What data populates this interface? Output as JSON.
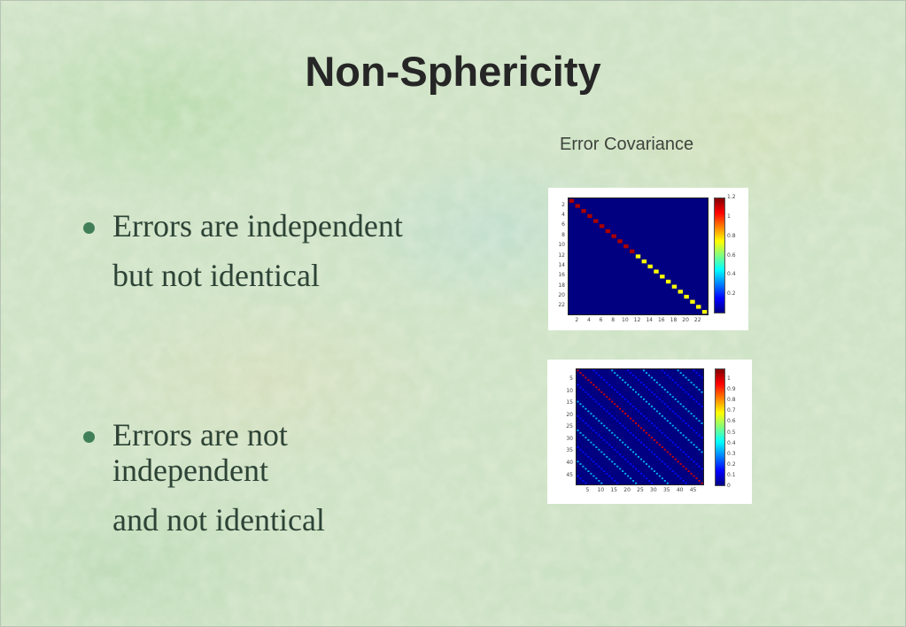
{
  "slide": {
    "title": "Non-Sphericity",
    "caption": "Error Covariance",
    "bullets": [
      {
        "paragraphs": [
          [
            "Errors are independent"
          ],
          [
            "but not identical"
          ]
        ]
      },
      {
        "paragraphs": [
          [
            "Errors are not",
            "independent"
          ],
          [
            "and not identical"
          ]
        ]
      }
    ]
  },
  "colors": {
    "background": "#cfe3c6",
    "title": "#262626",
    "caption": "#3e443c",
    "bullet_text": "#2d4336",
    "bullet_marker": "#417f58",
    "panel": "#ffffff",
    "heatmap_background": "#000080",
    "diag_red": "#aa0000",
    "diag_yellow": "#ffff00",
    "band_cyan": "#00b2ff",
    "band_blue": "#000bff"
  },
  "chart_data": [
    {
      "type": "heatmap",
      "description": "Covariance of independent but non-identical errors: diagonal matrix, first block high variance (dark red), second block lower variance (yellow), off-diagonal zero (dark blue).",
      "n": 23,
      "pattern": "diagonal",
      "diagonal": {
        "split_index": 11,
        "value_first": 1.15,
        "value_rest": 0.75
      },
      "off_diagonal_value": 0,
      "x_ticks": [
        2,
        4,
        6,
        8,
        10,
        12,
        14,
        16,
        18,
        20,
        22
      ],
      "y_ticks": [
        2,
        4,
        6,
        8,
        10,
        12,
        14,
        16,
        18,
        20,
        22
      ],
      "colorbar_ticks": [
        1.2,
        1,
        0.8,
        0.6,
        0.4,
        0.2
      ],
      "value_range": [
        0,
        1.2
      ],
      "colormap": "jet",
      "grid": false,
      "legend": "colorbar-right"
    },
    {
      "type": "heatmap",
      "description": "Covariance of non-independent, non-identical errors: unit main diagonal (red) with periodic off-diagonal correlation bands (cyan at full period, blue at half period).",
      "n": 48,
      "pattern": "periodic-diagonals",
      "main_diagonal_value": 1,
      "period": 12.6,
      "full_period_value": 0.33,
      "half_period_value": 0.15,
      "off_diagonal_value": 0,
      "x_ticks": [
        5,
        10,
        15,
        20,
        25,
        30,
        35,
        40,
        45
      ],
      "y_ticks": [
        5,
        10,
        15,
        20,
        25,
        30,
        35,
        40,
        45
      ],
      "colorbar_ticks": [
        1,
        0.9,
        0.8,
        0.7,
        0.6,
        0.5,
        0.4,
        0.3,
        0.2,
        0.1,
        0
      ],
      "value_range": [
        0,
        1.1
      ],
      "colormap": "jet",
      "grid": false,
      "legend": "colorbar-right"
    }
  ]
}
